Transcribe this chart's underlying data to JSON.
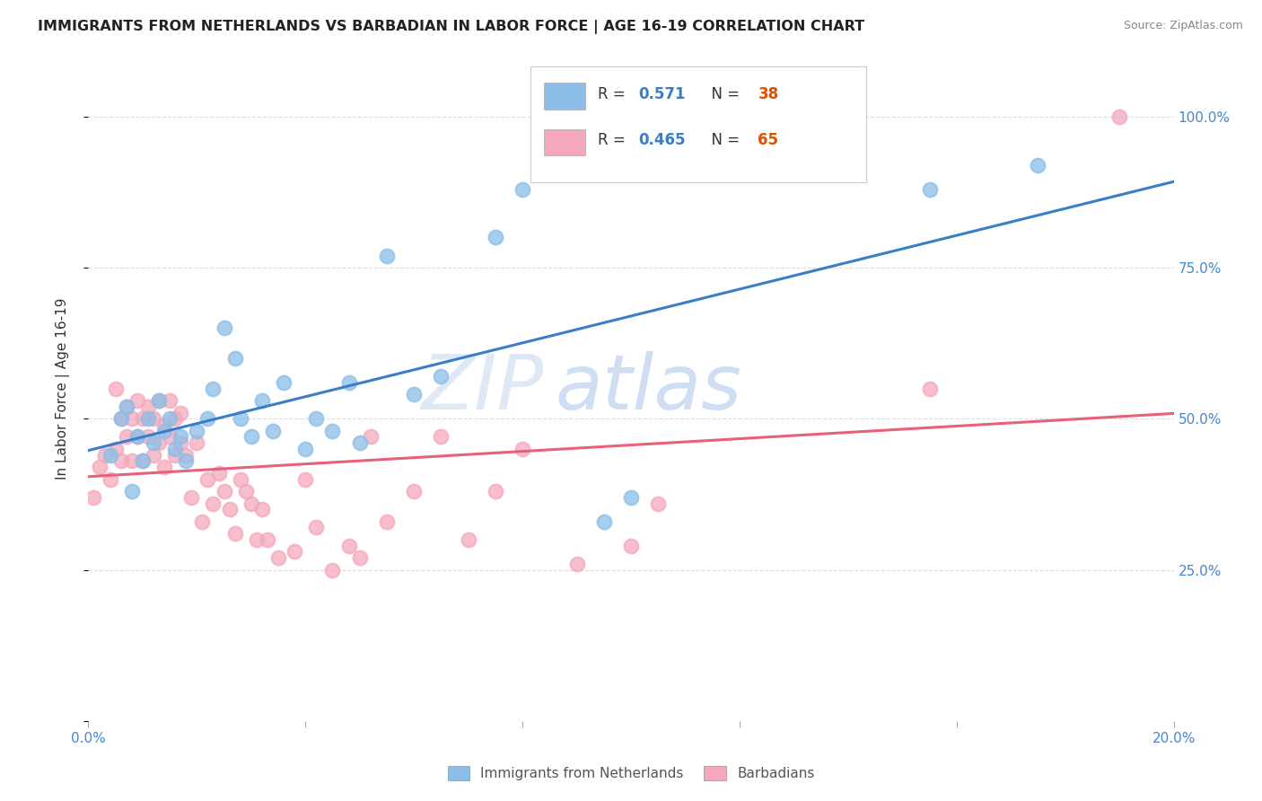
{
  "title": "IMMIGRANTS FROM NETHERLANDS VS BARBADIAN IN LABOR FORCE | AGE 16-19 CORRELATION CHART",
  "source": "Source: ZipAtlas.com",
  "ylabel": "In Labor Force | Age 16-19",
  "xlim": [
    0.0,
    0.2
  ],
  "ylim": [
    0.0,
    1.1
  ],
  "yticks": [
    0.0,
    0.25,
    0.5,
    0.75,
    1.0
  ],
  "ytick_labels": [
    "",
    "25.0%",
    "50.0%",
    "75.0%",
    "100.0%"
  ],
  "xticks": [
    0.0,
    0.04,
    0.08,
    0.12,
    0.16,
    0.2
  ],
  "xtick_labels": [
    "0.0%",
    "",
    "",
    "",
    "",
    "20.0%"
  ],
  "netherlands_color": "#8bbee8",
  "barbadian_color": "#f5a8bc",
  "netherlands_line_color": "#3a7dc9",
  "barbadian_line_color": "#e8607a",
  "netherlands_R": 0.571,
  "netherlands_N": 38,
  "barbadian_R": 0.465,
  "barbadian_N": 65,
  "watermark_zip": "ZIP",
  "watermark_atlas": "atlas",
  "legend_label_1": "Immigrants from Netherlands",
  "legend_label_2": "Barbadians",
  "R_color": "#3a7dc9",
  "N_color": "#e05000",
  "netherlands_x": [
    0.004,
    0.006,
    0.007,
    0.008,
    0.009,
    0.01,
    0.011,
    0.012,
    0.013,
    0.014,
    0.015,
    0.016,
    0.017,
    0.018,
    0.02,
    0.022,
    0.023,
    0.025,
    0.027,
    0.028,
    0.03,
    0.032,
    0.034,
    0.036,
    0.04,
    0.042,
    0.045,
    0.048,
    0.05,
    0.055,
    0.06,
    0.065,
    0.075,
    0.08,
    0.095,
    0.1,
    0.155,
    0.175
  ],
  "netherlands_y": [
    0.44,
    0.5,
    0.52,
    0.38,
    0.47,
    0.43,
    0.5,
    0.46,
    0.53,
    0.48,
    0.5,
    0.45,
    0.47,
    0.43,
    0.48,
    0.5,
    0.55,
    0.65,
    0.6,
    0.5,
    0.47,
    0.53,
    0.48,
    0.56,
    0.45,
    0.5,
    0.48,
    0.56,
    0.46,
    0.77,
    0.54,
    0.57,
    0.8,
    0.88,
    0.33,
    0.37,
    0.88,
    0.92
  ],
  "barbadian_x": [
    0.001,
    0.002,
    0.003,
    0.004,
    0.005,
    0.005,
    0.006,
    0.006,
    0.007,
    0.007,
    0.008,
    0.008,
    0.009,
    0.009,
    0.01,
    0.01,
    0.011,
    0.011,
    0.012,
    0.012,
    0.013,
    0.013,
    0.014,
    0.014,
    0.015,
    0.015,
    0.016,
    0.016,
    0.017,
    0.017,
    0.018,
    0.019,
    0.02,
    0.021,
    0.022,
    0.023,
    0.024,
    0.025,
    0.026,
    0.027,
    0.028,
    0.029,
    0.03,
    0.031,
    0.032,
    0.033,
    0.035,
    0.038,
    0.04,
    0.042,
    0.045,
    0.048,
    0.05,
    0.052,
    0.055,
    0.06,
    0.065,
    0.07,
    0.075,
    0.08,
    0.09,
    0.1,
    0.105,
    0.155,
    0.19
  ],
  "barbadian_y": [
    0.37,
    0.42,
    0.44,
    0.4,
    0.45,
    0.55,
    0.43,
    0.5,
    0.47,
    0.52,
    0.5,
    0.43,
    0.47,
    0.53,
    0.5,
    0.43,
    0.47,
    0.52,
    0.5,
    0.44,
    0.53,
    0.46,
    0.49,
    0.42,
    0.47,
    0.53,
    0.5,
    0.44,
    0.46,
    0.51,
    0.44,
    0.37,
    0.46,
    0.33,
    0.4,
    0.36,
    0.41,
    0.38,
    0.35,
    0.31,
    0.4,
    0.38,
    0.36,
    0.3,
    0.35,
    0.3,
    0.27,
    0.28,
    0.4,
    0.32,
    0.25,
    0.29,
    0.27,
    0.47,
    0.33,
    0.38,
    0.47,
    0.3,
    0.38,
    0.45,
    0.26,
    0.29,
    0.36,
    0.55,
    1.0
  ]
}
